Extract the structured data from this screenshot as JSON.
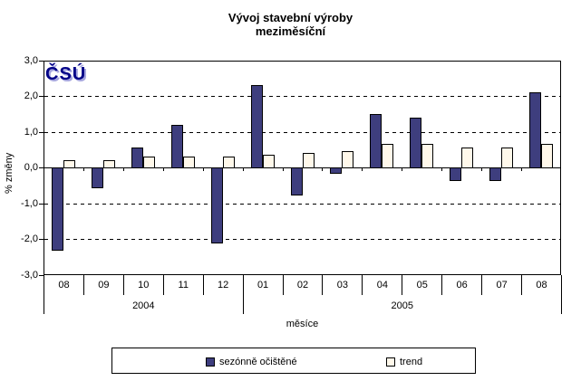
{
  "title": {
    "line1": "Vývoj stavební výroby",
    "line2": "meziměsíční"
  },
  "logo": {
    "text": "ČSÚ"
  },
  "y_axis": {
    "label": "% změny",
    "ticks": [
      {
        "label": "3,0",
        "value": 3
      },
      {
        "label": "2,0",
        "value": 2
      },
      {
        "label": "1,0",
        "value": 1
      },
      {
        "label": "0,0",
        "value": 0
      },
      {
        "label": "-1,0",
        "value": -1
      },
      {
        "label": "-2,0",
        "value": -2
      },
      {
        "label": "-3,0",
        "value": -3
      }
    ]
  },
  "x_axis": {
    "label": "měsíce",
    "months": [
      "08",
      "09",
      "10",
      "11",
      "12",
      "01",
      "02",
      "03",
      "04",
      "05",
      "06",
      "07",
      "08"
    ],
    "year_groups": [
      {
        "label": "2004",
        "span": 5
      },
      {
        "label": "2005",
        "span": 8
      }
    ]
  },
  "legend": {
    "items": [
      {
        "label": "sezónně očištěné",
        "swatch": "#3E3E7E"
      },
      {
        "label": "trend",
        "swatch": "#FFF8EA"
      }
    ]
  },
  "colors": {
    "seasonal_fill": "#3E3E7E",
    "trend_fill": "#FFF8EA",
    "axis": "#000000",
    "logo_navy": "#000087",
    "logo_shadow": "#A6A6DE"
  },
  "chart_data": {
    "type": "bar",
    "title": "Vývoj stavební výroby meziměsíční",
    "xlabel": "měsíce",
    "ylabel": "% změny",
    "ylim": [
      -3.0,
      3.0
    ],
    "ytick_step": 1.0,
    "grid": "horizontal-dashed",
    "legend_position": "bottom",
    "categories": [
      "2004-08",
      "2004-09",
      "2004-10",
      "2004-11",
      "2004-12",
      "2005-01",
      "2005-02",
      "2005-03",
      "2005-04",
      "2005-05",
      "2005-06",
      "2005-07",
      "2005-08"
    ],
    "series": [
      {
        "name": "sezónně očištěné",
        "color": "#3E3E7E",
        "values": [
          -2.3,
          -0.55,
          0.55,
          1.2,
          -2.1,
          2.3,
          -0.75,
          -0.15,
          1.5,
          1.4,
          -0.35,
          -0.35,
          2.1
        ]
      },
      {
        "name": "trend",
        "color": "#FFF8EA",
        "values": [
          0.2,
          0.2,
          0.3,
          0.3,
          0.3,
          0.35,
          0.4,
          0.45,
          0.65,
          0.65,
          0.55,
          0.55,
          0.65
        ]
      }
    ]
  }
}
